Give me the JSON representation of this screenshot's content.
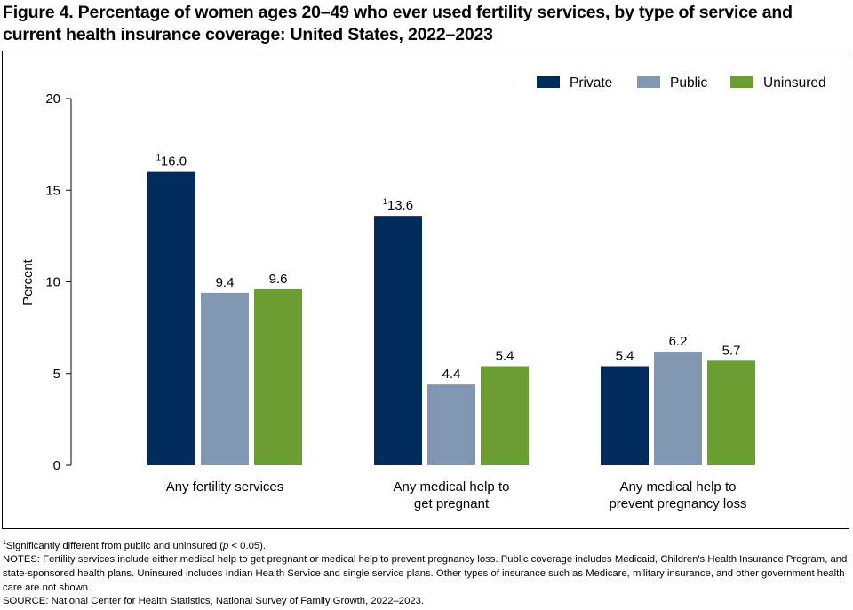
{
  "title": "Figure 4. Percentage of women ages 20–49 who ever used fertility services, by type of service and current health insurance coverage: United States, 2022–2023",
  "chart_data": {
    "type": "bar",
    "title": "Figure 4. Percentage of women ages 20–49 who ever used fertility services, by type of service and current health insurance coverage: United States, 2022–2023",
    "xlabel": "",
    "ylabel": "Percent",
    "ylim": [
      0,
      20
    ],
    "yticks": [
      "0",
      "5",
      "10",
      "15",
      "20"
    ],
    "grid": false,
    "legend_position": "top-right",
    "categories": [
      [
        "Any fertility services"
      ],
      [
        "Any medical help to",
        "get pregnant"
      ],
      [
        "Any medical help to",
        "prevent pregnancy loss"
      ]
    ],
    "series": [
      {
        "name": "Private",
        "color": "#002b5c",
        "values": [
          16.0,
          13.6,
          5.4
        ],
        "labels": [
          "16.0",
          "13.6",
          "5.4"
        ],
        "footnotes": [
          "1",
          "1",
          ""
        ]
      },
      {
        "name": "Public",
        "color": "#8196b1",
        "values": [
          9.4,
          4.4,
          6.2
        ],
        "labels": [
          "9.4",
          "4.4",
          "6.2"
        ],
        "footnotes": [
          "",
          "",
          ""
        ]
      },
      {
        "name": "Uninsured",
        "color": "#6b9e32",
        "values": [
          9.6,
          5.4,
          5.7
        ],
        "labels": [
          "9.6",
          "5.4",
          "5.7"
        ],
        "footnotes": [
          "",
          "",
          ""
        ]
      }
    ]
  },
  "notes": {
    "footnote_mark": "1",
    "footnote_text": "Significantly different from public and uninsured (",
    "footnote_p": "p",
    "footnote_end": " < 0.05).",
    "notes_text": "NOTES: Fertility services include either medical help to get pregnant or medical help to prevent pregnancy loss. Public coverage includes Medicaid, Children's Health Insurance Program, and state-sponsored health plans. Uninsured includes Indian Health Service and single service plans. Other types of insurance such as Medicare, military insurance, and other government health care are not shown.",
    "source": "SOURCE: National Center for Health Statistics, National Survey of Family Growth, 2022–2023."
  }
}
